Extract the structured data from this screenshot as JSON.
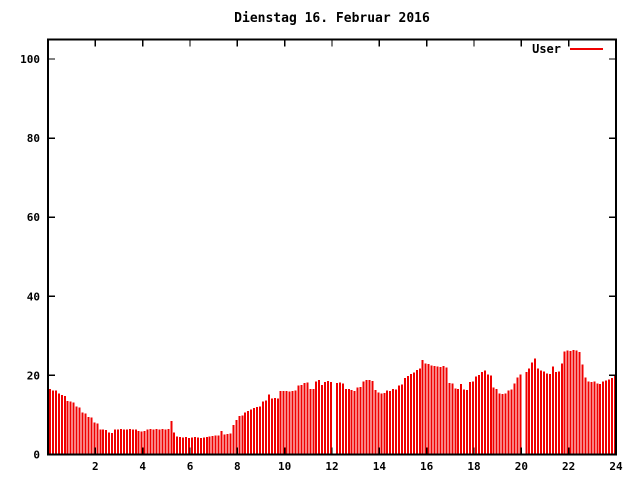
{
  "colors": {
    "background": "#ffffff",
    "axis": "#000000",
    "text": "#000000",
    "series_red": "#f00000"
  },
  "chart_data": {
    "type": "bar",
    "subtype": "impulses",
    "title": "Dienstag 16. Februar 2016",
    "xlabel": "",
    "ylabel": "",
    "xlim": [
      0,
      24
    ],
    "ylim": [
      0,
      105
    ],
    "grid": false,
    "legend_position": "top-right-inside",
    "xticks": {
      "values": [
        2,
        4,
        6,
        8,
        10,
        12,
        14,
        16,
        18,
        20,
        22,
        24
      ],
      "labels": [
        "2",
        "4",
        "6",
        "8",
        "10",
        "12",
        "14",
        "16",
        "18",
        "20",
        "22",
        "24"
      ]
    },
    "yticks": {
      "values": [
        0,
        20,
        40,
        60,
        80,
        100
      ],
      "labels": [
        "0",
        "20",
        "40",
        "60",
        "80",
        "100"
      ]
    },
    "x_interval_minutes": 7.5,
    "gaps_at_hours": [
      12,
      20
    ],
    "series": [
      {
        "name": "User",
        "color": "#f00000",
        "values": [
          16.5,
          16.2,
          16.2,
          15.4,
          15.0,
          14.8,
          13.5,
          13.4,
          13.2,
          12.1,
          11.9,
          10.6,
          10.4,
          9.5,
          9.4,
          8.1,
          7.9,
          6.3,
          6.3,
          6.2,
          5.6,
          5.5,
          6.3,
          6.3,
          6.4,
          6.3,
          6.3,
          6.4,
          6.3,
          6.3,
          6.0,
          5.8,
          5.9,
          6.3,
          6.4,
          6.3,
          6.4,
          6.3,
          6.4,
          6.3,
          6.5,
          8.5,
          5.6,
          4.6,
          4.4,
          4.3,
          4.4,
          4.2,
          4.3,
          4.4,
          4.3,
          4.2,
          4.3,
          4.4,
          4.6,
          4.7,
          4.8,
          4.8,
          5.9,
          5.1,
          5.2,
          5.3,
          7.5,
          8.7,
          9.7,
          9.8,
          10.6,
          11.0,
          11.4,
          11.8,
          12.0,
          12.1,
          13.4,
          13.6,
          15.2,
          14.1,
          14.3,
          14.2,
          16.0,
          16.1,
          16.0,
          15.9,
          16.1,
          16.2,
          17.4,
          17.6,
          18.1,
          18.2,
          16.5,
          16.6,
          18.4,
          18.8,
          17.6,
          18.3,
          18.6,
          18.3,
          0,
          18.1,
          18.2,
          17.9,
          16.6,
          16.5,
          16.3,
          16.1,
          17.0,
          17.1,
          18.5,
          18.8,
          18.9,
          18.6,
          16.3,
          15.7,
          15.4,
          15.6,
          16.2,
          16.0,
          16.5,
          16.4,
          17.4,
          17.7,
          19.4,
          19.8,
          20.4,
          20.7,
          21.4,
          21.8,
          23.9,
          23.0,
          22.9,
          22.5,
          22.4,
          22.3,
          22.1,
          22.4,
          22.0,
          18.1,
          18.0,
          16.7,
          16.5,
          17.8,
          16.4,
          16.3,
          18.3,
          18.5,
          19.7,
          20.1,
          20.9,
          21.2,
          20.2,
          20.0,
          16.9,
          16.6,
          15.4,
          15.3,
          15.4,
          16.2,
          16.4,
          18.0,
          19.5,
          20.2,
          0,
          20.9,
          21.8,
          23.2,
          24.3,
          21.7,
          21.3,
          21.0,
          20.5,
          20.3,
          22.2,
          20.9,
          21.0,
          23.0,
          26.0,
          26.3,
          26.2,
          26.4,
          26.3,
          25.9,
          22.8,
          19.5,
          18.5,
          18.3,
          18.4,
          17.9,
          17.8,
          18.5,
          18.7,
          19.0,
          19.4,
          19.8
        ]
      }
    ]
  }
}
